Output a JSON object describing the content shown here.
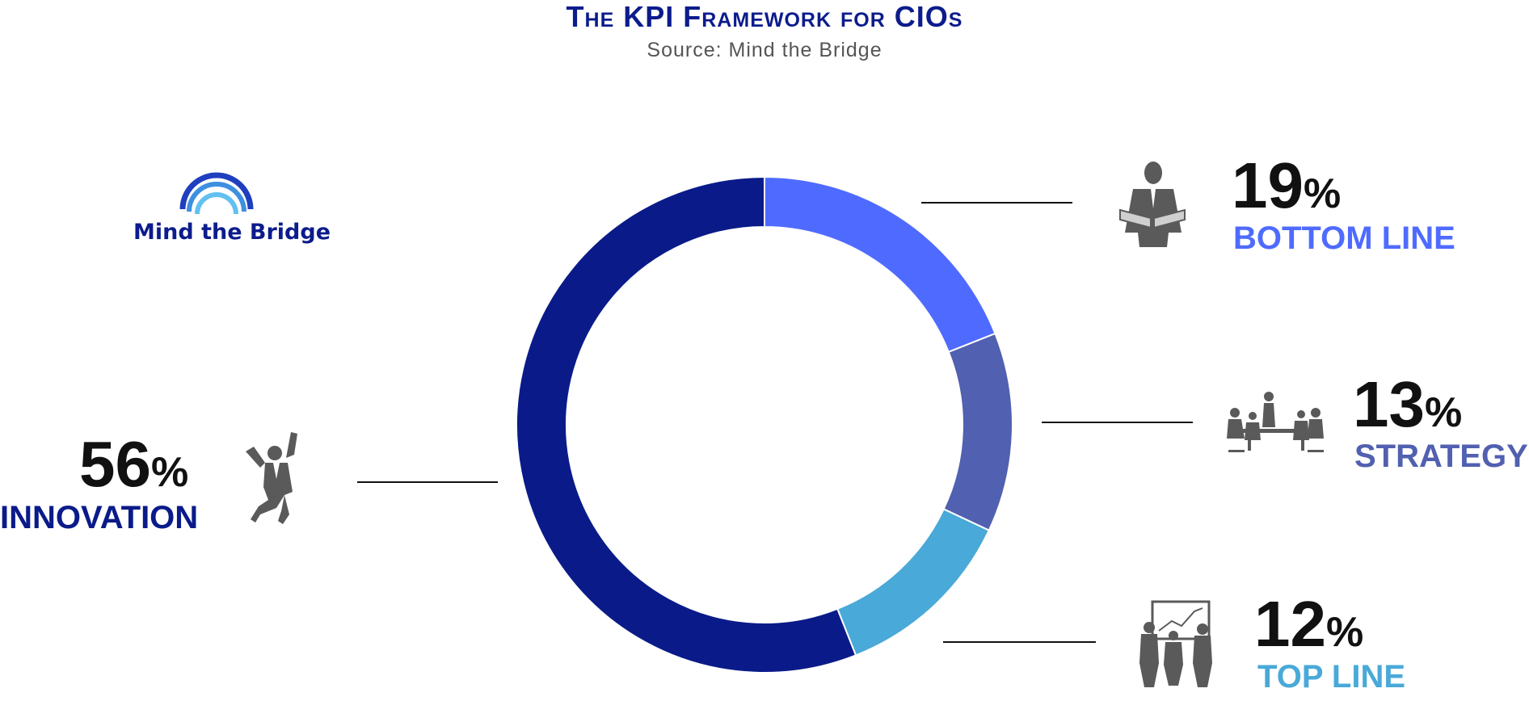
{
  "header": {
    "title": "The KPI Framework for CIOs",
    "subtitle": "Source: Mind the Bridge"
  },
  "logo": {
    "text": "Mind the Bridge",
    "colors": [
      "#1f3fbf",
      "#3d8fe0",
      "#62c1f0"
    ]
  },
  "chart_data": {
    "type": "pie",
    "donut": true,
    "series": [
      {
        "name": "BOTTOM LINE",
        "value": 19,
        "label": "19%",
        "color": "#4f6bff",
        "icon": "businessman-document-icon"
      },
      {
        "name": "STRATEGY",
        "value": 13,
        "label": "13%",
        "color": "#5160b0",
        "icon": "meeting-table-icon"
      },
      {
        "name": "TOP LINE",
        "value": 12,
        "label": "12%",
        "color": "#49a9d8",
        "icon": "presentation-chart-icon"
      },
      {
        "name": "INNOVATION",
        "value": 56,
        "label": "56%",
        "color": "#0a1b89",
        "icon": "jumping-businessman-icon"
      }
    ],
    "legend": "callouts around donut"
  },
  "callouts": {
    "bottom_line": {
      "number": "19",
      "symbol": "%",
      "label": "BOTTOM LINE",
      "color": "#4f6bff"
    },
    "strategy": {
      "number": "13",
      "symbol": "%",
      "label": "STRATEGY",
      "color": "#5160b0"
    },
    "top_line": {
      "number": "12",
      "symbol": "%",
      "label": "TOP LINE",
      "color": "#49a9d8"
    },
    "innovation": {
      "number": "56",
      "symbol": "%",
      "label": "INNOVATION",
      "color": "#0a1b89"
    }
  }
}
